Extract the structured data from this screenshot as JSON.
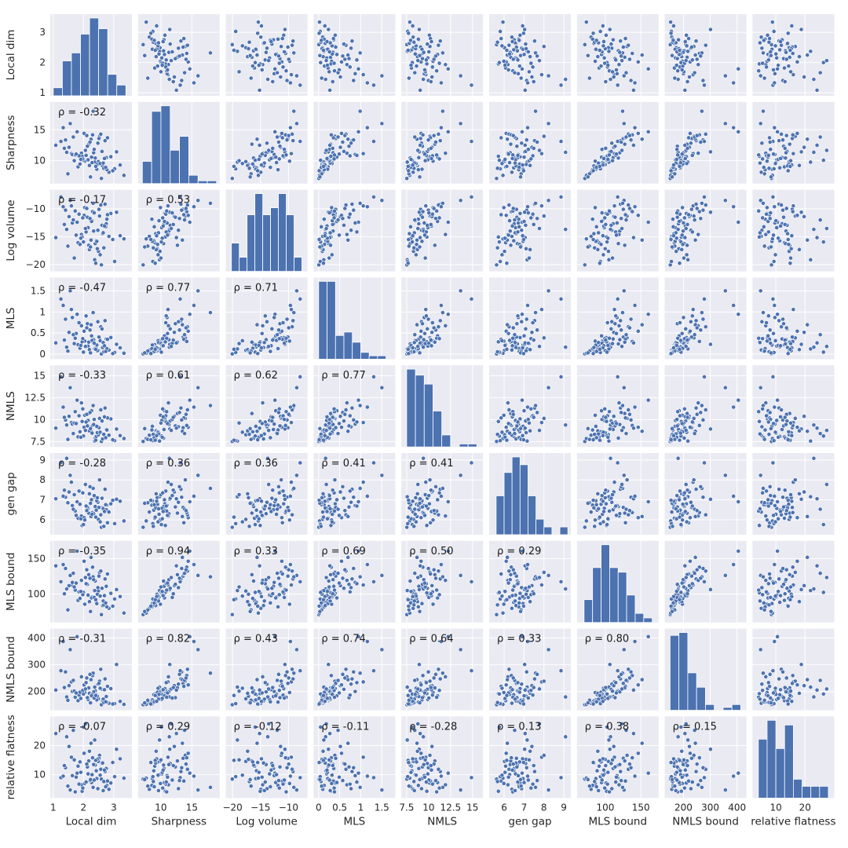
{
  "chart_data": {
    "type": "scatter",
    "title": "",
    "variables": [
      "Local dim",
      "Sharpness",
      "Log volume",
      "MLS",
      "NMLS",
      "gen gap",
      "MLS bound",
      "NMLS bound",
      "relative flatness"
    ],
    "ranges": [
      [
        0.9,
        3.6
      ],
      [
        6.3,
        19.5
      ],
      [
        -21.2,
        -6.6
      ],
      [
        -0.12,
        1.82
      ],
      [
        6.9,
        16.2
      ],
      [
        5.25,
        9.35
      ],
      [
        60,
        175
      ],
      [
        130,
        435
      ],
      [
        2,
        30
      ]
    ],
    "ticks": [
      [
        1,
        2,
        3
      ],
      [
        10,
        15
      ],
      [
        -20,
        -15,
        -10
      ],
      [
        0.0,
        0.5,
        1.0,
        1.5
      ],
      [
        7.5,
        10.0,
        12.5,
        15.0
      ],
      [
        6,
        7,
        8,
        9
      ],
      [
        100,
        150
      ],
      [
        200,
        300,
        400
      ],
      [
        10,
        20
      ]
    ],
    "histogram_edges": [
      [
        1.0,
        1.3,
        1.6,
        1.9,
        2.2,
        2.5,
        2.8,
        3.1,
        3.4
      ],
      [
        7.0,
        8.5,
        10.0,
        11.5,
        13.0,
        14.5,
        16.0,
        17.5,
        19.0
      ],
      [
        -20.2,
        -18.8,
        -17.4,
        -16.0,
        -14.6,
        -13.2,
        -11.8,
        -10.4,
        -9.0,
        -7.6
      ],
      [
        0.0,
        0.2,
        0.4,
        0.6,
        0.8,
        1.0,
        1.2,
        1.4,
        1.6
      ],
      [
        7.5,
        8.5,
        9.5,
        10.5,
        11.5,
        12.5,
        13.5,
        14.5,
        15.5
      ],
      [
        5.6,
        6.0,
        6.4,
        6.8,
        7.2,
        7.6,
        8.0,
        8.4,
        8.8,
        9.2
      ],
      [
        70,
        82,
        94,
        106,
        118,
        130,
        142,
        154,
        166
      ],
      [
        150,
        183,
        216,
        249,
        282,
        315,
        348,
        381,
        414
      ],
      [
        4,
        7,
        10,
        13,
        16,
        19,
        22,
        25,
        28
      ]
    ],
    "histogram_counts": [
      [
        3,
        13,
        16,
        23,
        29,
        25,
        8,
        4
      ],
      [
        8,
        26,
        28,
        12,
        17,
        3,
        1,
        1
      ],
      [
        4,
        2,
        8,
        11,
        8,
        9,
        11,
        8,
        2
      ],
      [
        23,
        23,
        7,
        8,
        5,
        2,
        1,
        1
      ],
      [
        26,
        24,
        21,
        12,
        4,
        0,
        1,
        1
      ],
      [
        5,
        8,
        10,
        9,
        5,
        2,
        1,
        0,
        1
      ],
      [
        5,
        12,
        17,
        12,
        11,
        6,
        2,
        1
      ],
      [
        26,
        27,
        13,
        8,
        2,
        0,
        1,
        2
      ],
      [
        25,
        33,
        21,
        31,
        8,
        5,
        5,
        5
      ]
    ],
    "rho_matrix": [
      [
        1,
        -0.32,
        -0.17,
        -0.47,
        -0.33,
        -0.28,
        -0.35,
        -0.31,
        -0.07
      ],
      [
        -0.32,
        1,
        0.53,
        0.77,
        0.61,
        0.36,
        0.94,
        0.82,
        0.29
      ],
      [
        -0.17,
        0.53,
        1,
        0.71,
        0.62,
        0.36,
        0.33,
        0.43,
        -0.12
      ],
      [
        -0.47,
        0.77,
        0.71,
        1,
        0.77,
        0.41,
        0.69,
        0.74,
        -0.11
      ],
      [
        -0.33,
        0.61,
        0.62,
        0.77,
        1,
        0.41,
        0.5,
        0.64,
        -0.28
      ],
      [
        -0.28,
        0.36,
        0.36,
        0.41,
        0.41,
        1,
        0.29,
        0.33,
        0.13
      ],
      [
        -0.35,
        0.94,
        0.33,
        0.69,
        0.5,
        0.29,
        1,
        0.8,
        0.38
      ],
      [
        -0.31,
        0.82,
        0.43,
        0.74,
        0.64,
        0.33,
        0.8,
        1,
        0.15
      ],
      [
        -0.07,
        0.29,
        -0.12,
        -0.11,
        -0.28,
        0.13,
        0.38,
        0.15,
        1
      ]
    ],
    "rho_labels": [
      [
        "",
        "",
        "",
        "",
        "",
        "",
        "",
        "",
        ""
      ],
      [
        "ρ = -0.32",
        "",
        "",
        "",
        "",
        "",
        "",
        "",
        ""
      ],
      [
        "ρ = -0.17",
        "ρ = 0.53",
        "",
        "",
        "",
        "",
        "",
        "",
        ""
      ],
      [
        "ρ = -0.47",
        "ρ = 0.77",
        "ρ = 0.71",
        "",
        "",
        "",
        "",
        "",
        ""
      ],
      [
        "ρ = -0.33",
        "ρ = 0.61",
        "ρ = 0.62",
        "ρ = 0.77",
        "",
        "",
        "",
        "",
        ""
      ],
      [
        "ρ = -0.28",
        "ρ = 0.36",
        "ρ = 0.36",
        "ρ = 0.41",
        "ρ = 0.41",
        "",
        "",
        "",
        ""
      ],
      [
        "ρ = -0.35",
        "ρ = 0.94",
        "ρ = 0.33",
        "ρ = 0.69",
        "ρ = 0.50",
        "ρ = 0.29",
        "",
        "",
        ""
      ],
      [
        "ρ = -0.31",
        "ρ = 0.82",
        "ρ = 0.43",
        "ρ = 0.74",
        "ρ = 0.64",
        "ρ = 0.33",
        "ρ = 0.80",
        "",
        ""
      ],
      [
        "ρ = -0.07",
        "ρ = 0.29",
        "ρ = -0.12",
        "ρ = -0.11",
        "ρ = -0.28",
        "ρ = 0.13",
        "ρ = 0.38",
        "ρ = 0.15",
        ""
      ]
    ],
    "n_points": 72,
    "grid": true,
    "legend": "none",
    "colors": {
      "points": "#4c72b0",
      "bars": "#4c72b0",
      "background": "#eaeaf2",
      "grid": "#ffffff"
    }
  }
}
